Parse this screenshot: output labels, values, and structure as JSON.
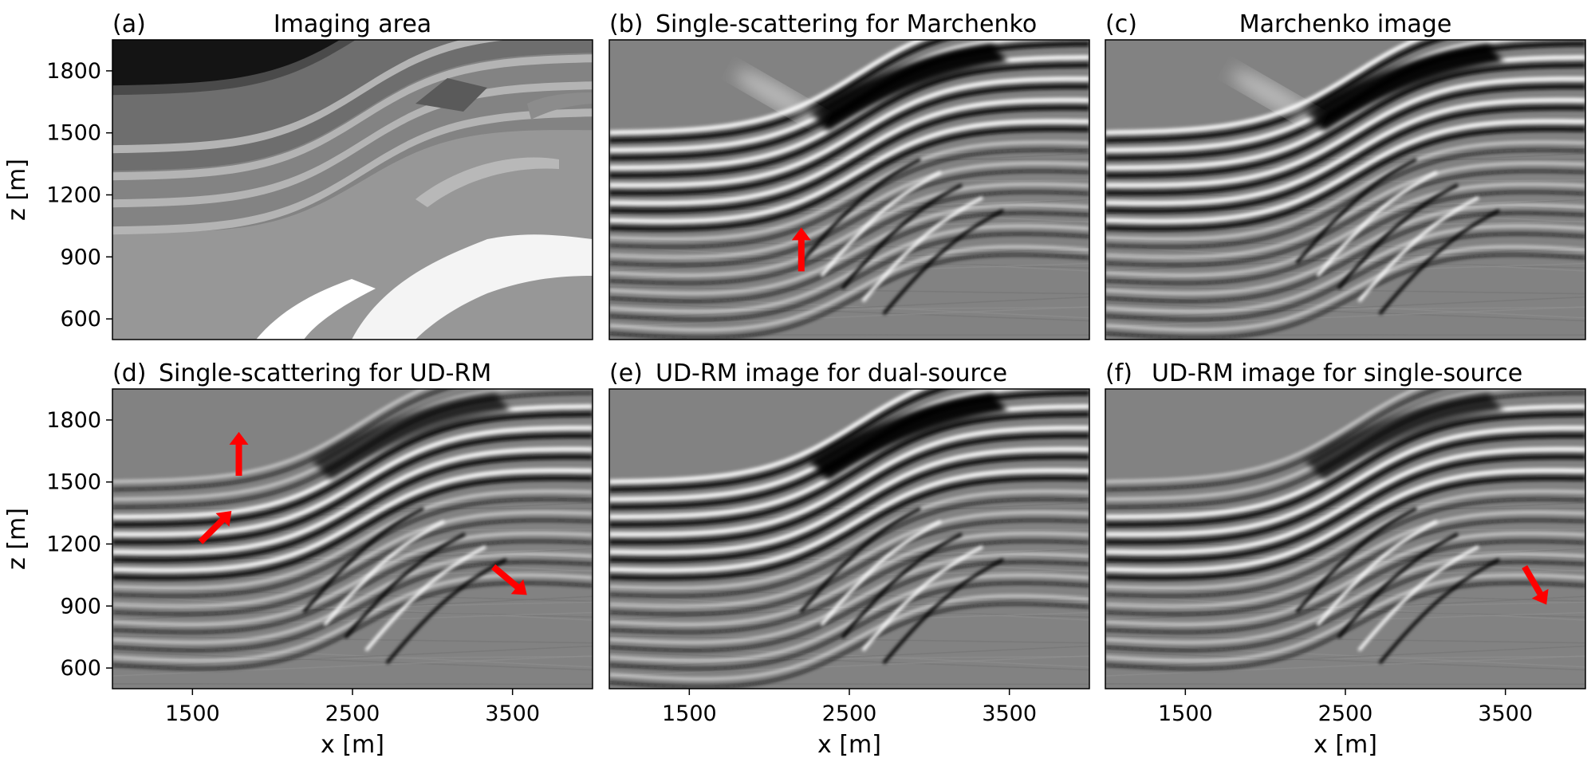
{
  "figure": {
    "panels": [
      {
        "id": "a",
        "label": "(a)",
        "title": "Imaging area",
        "kind": "model"
      },
      {
        "id": "b",
        "label": "(b)",
        "title": "Single-scattering for Marchenko",
        "kind": "seismic",
        "arrows": [
          {
            "x": 2200,
            "z": 830,
            "dir": "up"
          }
        ]
      },
      {
        "id": "c",
        "label": "(c)",
        "title": "Marchenko image",
        "kind": "seismic",
        "arrows": []
      },
      {
        "id": "d",
        "label": "(d)",
        "title": "Single-scattering for UD-RM",
        "kind": "seismic",
        "arrows": [
          {
            "x": 1790,
            "z": 1530,
            "dir": "up"
          },
          {
            "x": 1550,
            "z": 1210,
            "dir": "up-right"
          },
          {
            "x": 3380,
            "z": 1090,
            "dir": "down-right"
          }
        ]
      },
      {
        "id": "e",
        "label": "(e)",
        "title": "UD-RM image for dual-source",
        "kind": "seismic",
        "arrows": []
      },
      {
        "id": "f",
        "label": "(f)",
        "title": "UD-RM image for single-source",
        "kind": "seismic",
        "arrows": [
          {
            "x": 3620,
            "z": 1090,
            "dir": "down-right-steep"
          }
        ]
      }
    ],
    "xaxis": {
      "label": "x [m]",
      "ticks": [
        1500,
        2500,
        3500
      ],
      "range": [
        1000,
        4000
      ]
    },
    "yaxis": {
      "label": "z [m]",
      "ticks": [
        600,
        900,
        1200,
        1500,
        1800
      ],
      "range": [
        500,
        1950
      ]
    },
    "colors": {
      "arrow": "#ff0000",
      "background": "#808080"
    }
  }
}
